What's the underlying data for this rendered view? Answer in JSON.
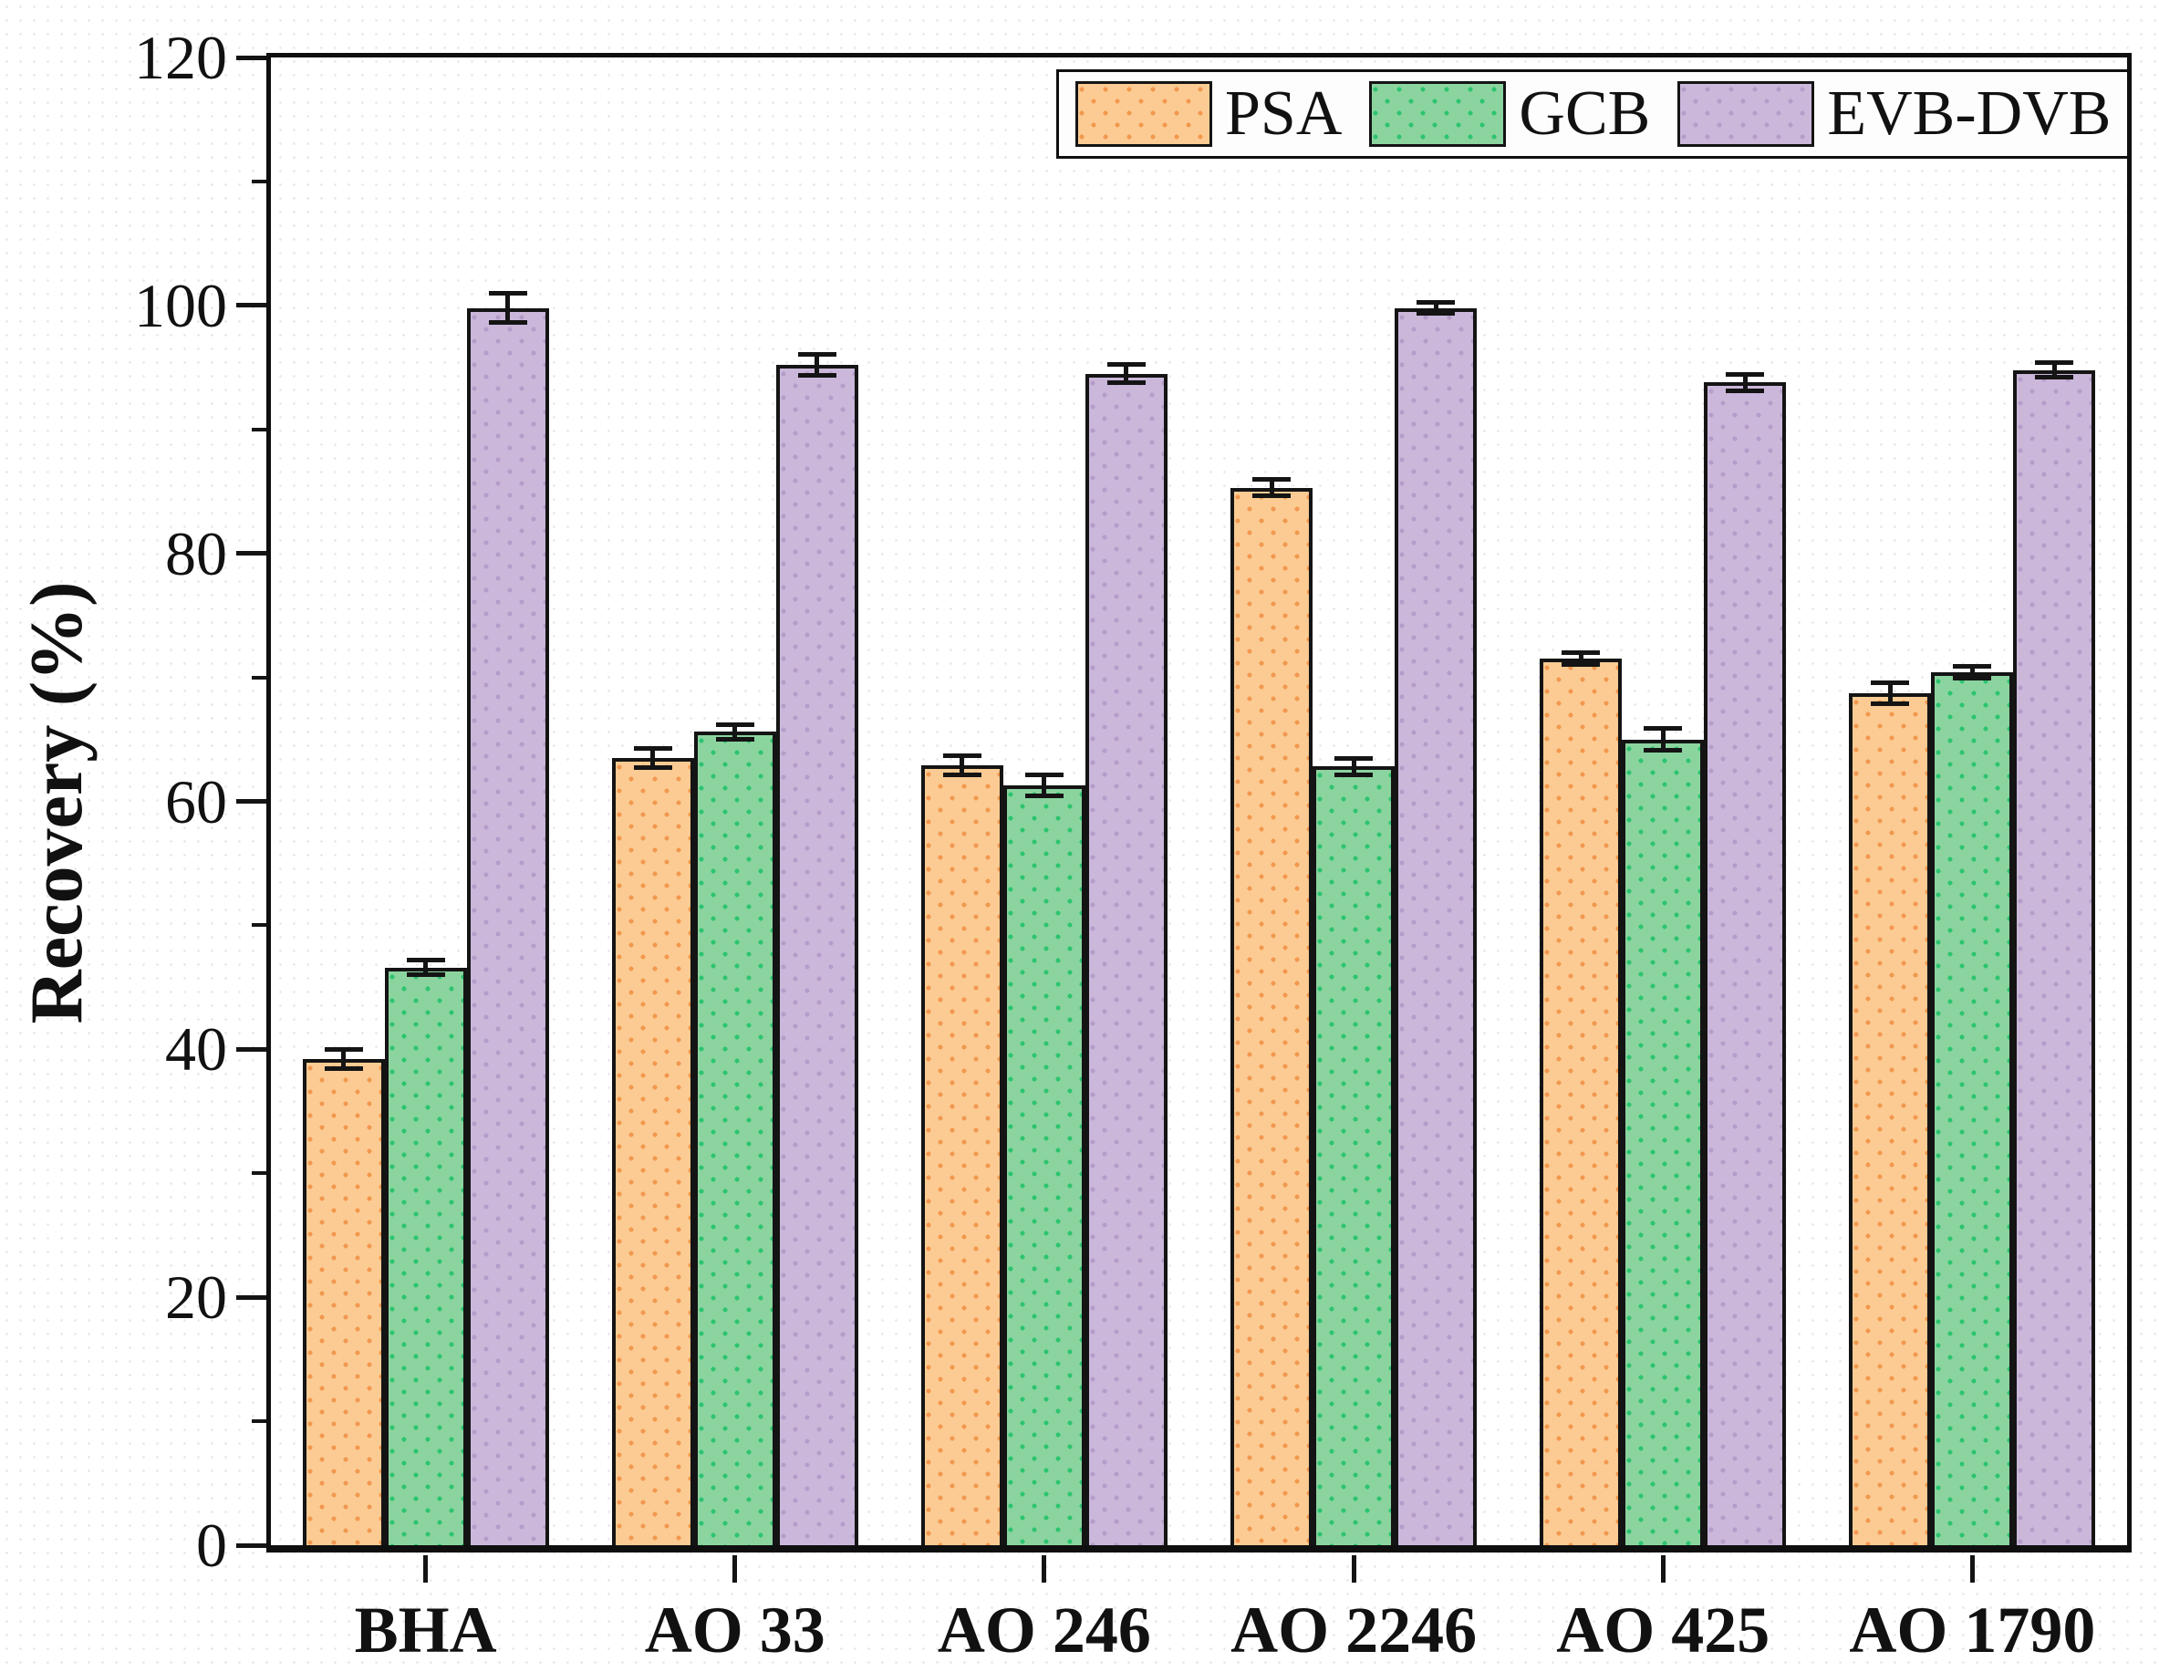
{
  "chart_data": {
    "type": "bar",
    "title": "",
    "xlabel": "",
    "ylabel": "Recovery (%)",
    "ylim": [
      0,
      120
    ],
    "y_major_step": 20,
    "y_minor_step": 10,
    "y_tick_labels": [
      "0",
      "20",
      "40",
      "60",
      "80",
      "100",
      "120"
    ],
    "grid": false,
    "legend_position": "top-right-inside",
    "error_bars": true,
    "categories": [
      "BHA",
      "AO 33",
      "AO 246",
      "AO 2246",
      "AO 425",
      "AO 1790"
    ],
    "series": [
      {
        "name": "PSA",
        "fill": "#FBCB93",
        "dot": "#F2984F",
        "values": [
          39.2,
          63.5,
          62.9,
          85.3,
          71.5,
          68.7
        ],
        "errors": [
          0.8,
          0.8,
          0.8,
          0.7,
          0.5,
          0.9
        ]
      },
      {
        "name": "GCB",
        "fill": "#8BD49F",
        "dot": "#2EC46F",
        "values": [
          46.6,
          65.6,
          61.3,
          62.8,
          65.0,
          70.4
        ],
        "errors": [
          0.6,
          0.6,
          0.9,
          0.7,
          0.9,
          0.5
        ]
      },
      {
        "name": "EVB-DVB",
        "fill": "#CBB7DA",
        "dot": "#B49DC9",
        "values": [
          99.8,
          95.2,
          94.5,
          99.8,
          93.8,
          94.8
        ],
        "errors": [
          1.2,
          0.9,
          0.8,
          0.5,
          0.7,
          0.6
        ]
      }
    ],
    "axis_color": "#0f0f0f"
  }
}
